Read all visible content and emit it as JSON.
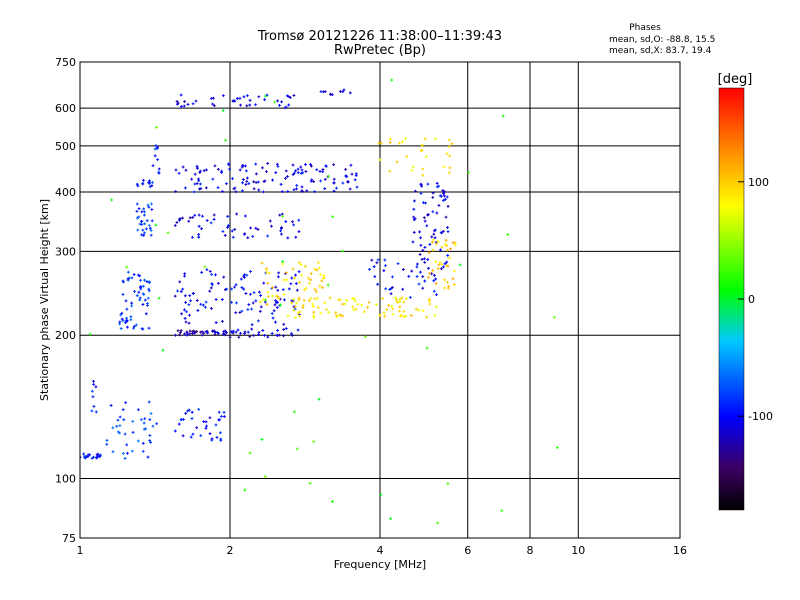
{
  "chart_data": {
    "type": "scatter",
    "title": "Tromsø 20121226 11:38:00–11:39:43",
    "subtitle": "RwPretec (Bp)",
    "xlabel": "Frequency [MHz]",
    "ylabel": "Stationary phase Virtual Height [km]",
    "x_scale": "log",
    "y_scale": "log",
    "xlim": [
      1,
      16
    ],
    "ylim": [
      75,
      750
    ],
    "x_ticks": [
      1,
      2,
      4,
      6,
      8,
      10,
      16
    ],
    "x_tick_labels": [
      "1",
      "2",
      "4",
      "6",
      "8",
      "10",
      "16"
    ],
    "y_ticks": [
      75,
      100,
      200,
      300,
      400,
      500,
      600,
      750
    ],
    "y_tick_labels": [
      "75",
      "100",
      "200",
      "300",
      "400",
      "500",
      "600",
      "750"
    ],
    "grid": true,
    "stats": {
      "heading": "Phases",
      "line_o": "mean, sd,O: -88.8, 15.5",
      "line_x": "mean, sd,X:  83.7, 19.4"
    },
    "colorbar": {
      "label": "[deg]",
      "range": [
        -180,
        180
      ],
      "ticks": [
        100,
        0,
        -100
      ],
      "tick_labels": [
        "100",
        "0",
        "-100"
      ]
    },
    "clusters": [
      {
        "f": [
          1.0,
          1.1
        ],
        "h": [
          110,
          113
        ],
        "phase": -95,
        "n": 22
      },
      {
        "f": [
          1.04,
          1.08
        ],
        "h": [
          130,
          175
        ],
        "phase": -90,
        "n": 8
      },
      {
        "f": [
          1.13,
          1.45
        ],
        "h": [
          110,
          145
        ],
        "phase": -80,
        "n": 40
      },
      {
        "f": [
          1.2,
          1.38
        ],
        "h": [
          205,
          275
        ],
        "phase": -85,
        "n": 60
      },
      {
        "f": [
          1.3,
          1.4
        ],
        "h": [
          320,
          380
        ],
        "phase": -82,
        "n": 30
      },
      {
        "f": [
          1.3,
          1.4
        ],
        "h": [
          410,
          425
        ],
        "phase": -90,
        "n": 12
      },
      {
        "f": [
          1.4,
          1.45
        ],
        "h": [
          430,
          510
        ],
        "phase": -92,
        "n": 10
      },
      {
        "f": [
          1.55,
          1.95
        ],
        "h": [
          120,
          140
        ],
        "phase": -98,
        "n": 35
      },
      {
        "f": [
          1.55,
          2.0
        ],
        "h": [
          200,
          205
        ],
        "phase": -118,
        "n": 40
      },
      {
        "f": [
          2.0,
          2.8
        ],
        "h": [
          198,
          207
        ],
        "phase": -112,
        "n": 30
      },
      {
        "f": [
          1.55,
          2.8
        ],
        "h": [
          210,
          275
        ],
        "phase": -100,
        "n": 110
      },
      {
        "f": [
          1.55,
          2.8
        ],
        "h": [
          320,
          360
        ],
        "phase": -105,
        "n": 55
      },
      {
        "f": [
          1.55,
          3.6
        ],
        "h": [
          400,
          460
        ],
        "phase": -105,
        "n": 130
      },
      {
        "f": [
          1.55,
          2.8
        ],
        "h": [
          600,
          640
        ],
        "phase": -108,
        "n": 40
      },
      {
        "f": [
          2.8,
          3.6
        ],
        "h": [
          640,
          660
        ],
        "phase": -110,
        "n": 10
      },
      {
        "f": [
          2.3,
          3.2
        ],
        "h": [
          228,
          285
        ],
        "phase": 95,
        "n": 55
      },
      {
        "f": [
          2.6,
          5.2
        ],
        "h": [
          218,
          240
        ],
        "phase": 88,
        "n": 80
      },
      {
        "f": [
          3.8,
          5.2
        ],
        "h": [
          238,
          290
        ],
        "phase": -100,
        "n": 35
      },
      {
        "f": [
          4.6,
          5.5
        ],
        "h": [
          260,
          420
        ],
        "phase": -105,
        "n": 70
      },
      {
        "f": [
          5.0,
          5.7
        ],
        "h": [
          250,
          320
        ],
        "phase": 100,
        "n": 35
      },
      {
        "f": [
          3.8,
          5.6
        ],
        "h": [
          430,
          520
        ],
        "phase": 90,
        "n": 30
      },
      {
        "f": [
          1.0,
          9.5
        ],
        "h": [
          80,
          700
        ],
        "phase": 20,
        "n": 45
      }
    ]
  }
}
